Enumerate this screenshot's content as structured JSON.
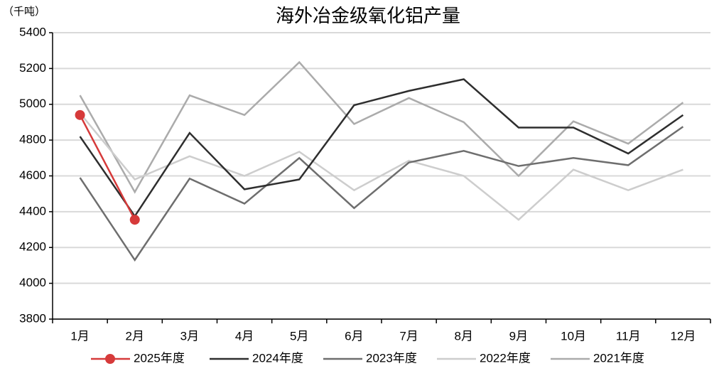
{
  "chart_data": {
    "type": "line",
    "title": "海外冶金级氧化铝产量",
    "unit_label": "（千吨）",
    "categories": [
      "1月",
      "2月",
      "3月",
      "4月",
      "5月",
      "6月",
      "7月",
      "8月",
      "9月",
      "10月",
      "11月",
      "12月"
    ],
    "series": [
      {
        "name": "2025年度",
        "color": "#d63a3a",
        "marker": true,
        "values": [
          4940,
          4355,
          null,
          null,
          null,
          null,
          null,
          null,
          null,
          null,
          null,
          null
        ]
      },
      {
        "name": "2024年度",
        "color": "#2e2e2e",
        "values": [
          4820,
          4375,
          4840,
          4525,
          4580,
          4995,
          5075,
          5140,
          4870,
          4870,
          4725,
          4940
        ]
      },
      {
        "name": "2023年度",
        "color": "#6e6e6e",
        "values": [
          4590,
          4130,
          4585,
          4445,
          4700,
          4420,
          4675,
          4740,
          4655,
          4700,
          4660,
          4875
        ]
      },
      {
        "name": "2022年度",
        "color": "#cdcdcd",
        "values": [
          4950,
          4580,
          4710,
          4600,
          4735,
          4520,
          4685,
          4600,
          4355,
          4635,
          4520,
          4635
        ]
      },
      {
        "name": "2021年度",
        "color": "#ababab",
        "values": [
          5050,
          4510,
          5050,
          4940,
          5235,
          4890,
          5035,
          4900,
          4600,
          4905,
          4780,
          5010
        ]
      }
    ],
    "ylim": [
      3800,
      5400
    ],
    "yticks": [
      3800,
      4000,
      4200,
      4400,
      4600,
      4800,
      5000,
      5200,
      5400
    ],
    "grid": true
  }
}
